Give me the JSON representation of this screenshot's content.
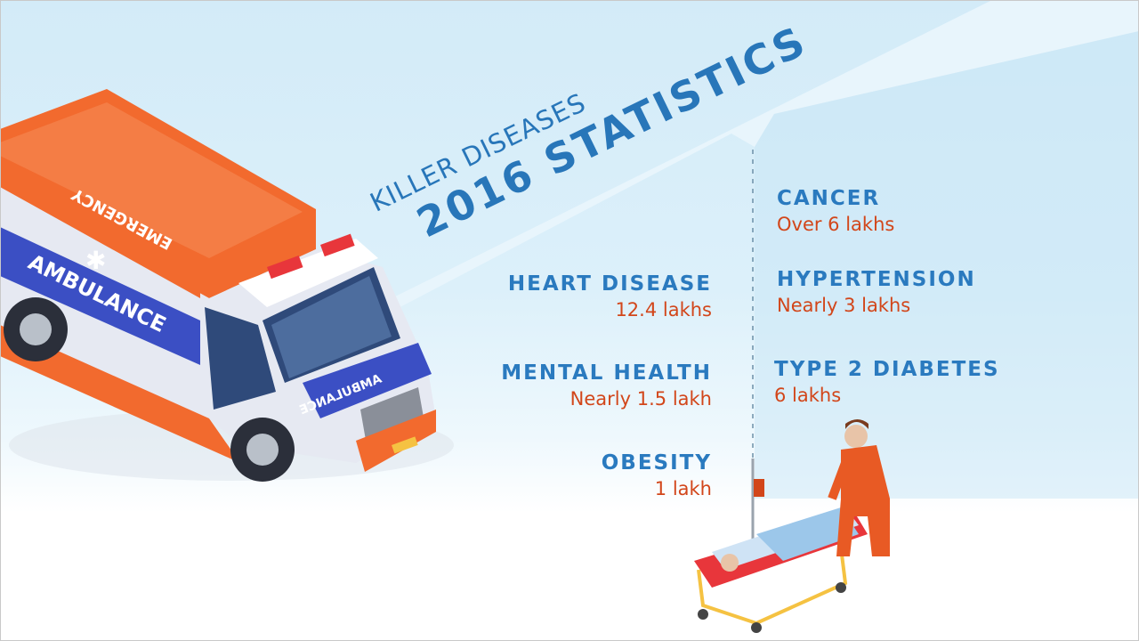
{
  "title": {
    "line1": "KILLER DISEASES",
    "line2": "2016 STATISTICS"
  },
  "colors": {
    "heading": "#2a7abf",
    "value": "#d2461a",
    "ambulance_orange": "#f26a2e",
    "ambulance_blue": "#3b4fc4"
  },
  "stats_left": [
    {
      "name": "HEART DISEASE",
      "value": "12.4 lakhs"
    },
    {
      "name": "MENTAL HEALTH",
      "value": "Nearly 1.5 lakh"
    },
    {
      "name": "OBESITY",
      "value": "1 lakh"
    }
  ],
  "stats_right": [
    {
      "name": "CANCER",
      "value": "Over 6 lakhs"
    },
    {
      "name": "HYPERTENSION",
      "value": "Nearly 3 lakhs"
    },
    {
      "name": "TYPE 2 DIABETES",
      "value": "6 lakhs"
    }
  ],
  "illustration": {
    "ambulance_side_top": "EMERGENCY",
    "ambulance_side": "AMBULANCE",
    "ambulance_front": "AMBULANCE"
  }
}
